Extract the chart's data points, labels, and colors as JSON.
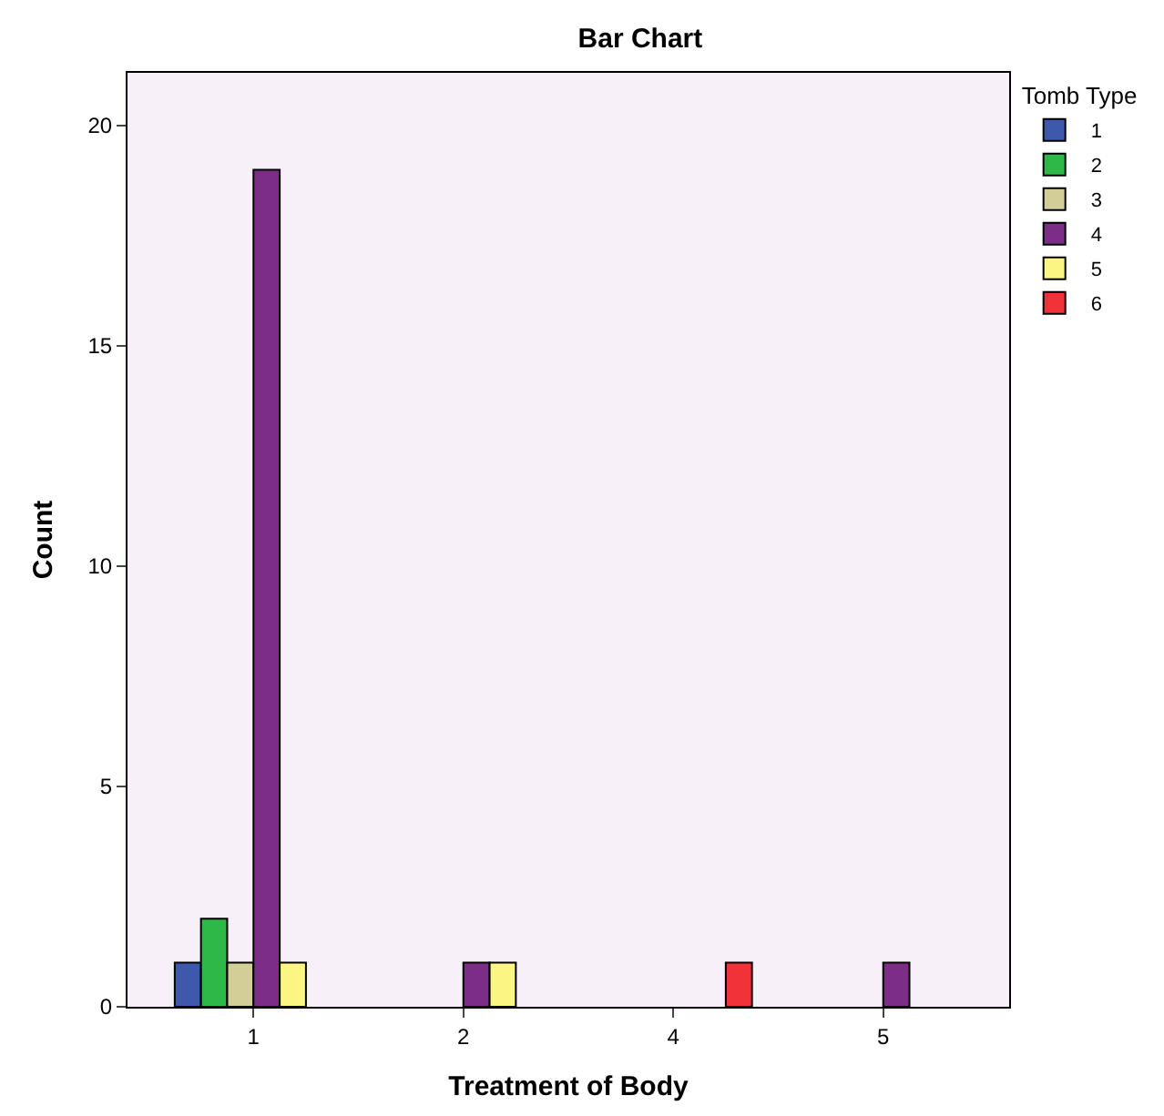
{
  "chart_data": {
    "type": "bar",
    "title": "Bar Chart",
    "xlabel": "Treatment of Body",
    "ylabel": "Count",
    "legend_title": "Tomb Type",
    "categories": [
      "1",
      "2",
      "4",
      "5"
    ],
    "series": [
      {
        "name": "1",
        "color": "#3e58ac",
        "values": [
          1,
          null,
          null,
          null
        ]
      },
      {
        "name": "2",
        "color": "#2eb848",
        "values": [
          2,
          null,
          null,
          null
        ]
      },
      {
        "name": "3",
        "color": "#d3ce97",
        "values": [
          1,
          null,
          null,
          null
        ]
      },
      {
        "name": "4",
        "color": "#7c2d85",
        "values": [
          19,
          1,
          null,
          1
        ]
      },
      {
        "name": "5",
        "color": "#fbf583",
        "values": [
          1,
          1,
          null,
          null
        ]
      },
      {
        "name": "6",
        "color": "#ef3338",
        "values": [
          null,
          null,
          1,
          null
        ]
      }
    ],
    "ylim": [
      0,
      21.2
    ],
    "yticks": [
      0,
      5,
      10,
      15,
      20
    ],
    "grid": false,
    "legend": "top right"
  }
}
